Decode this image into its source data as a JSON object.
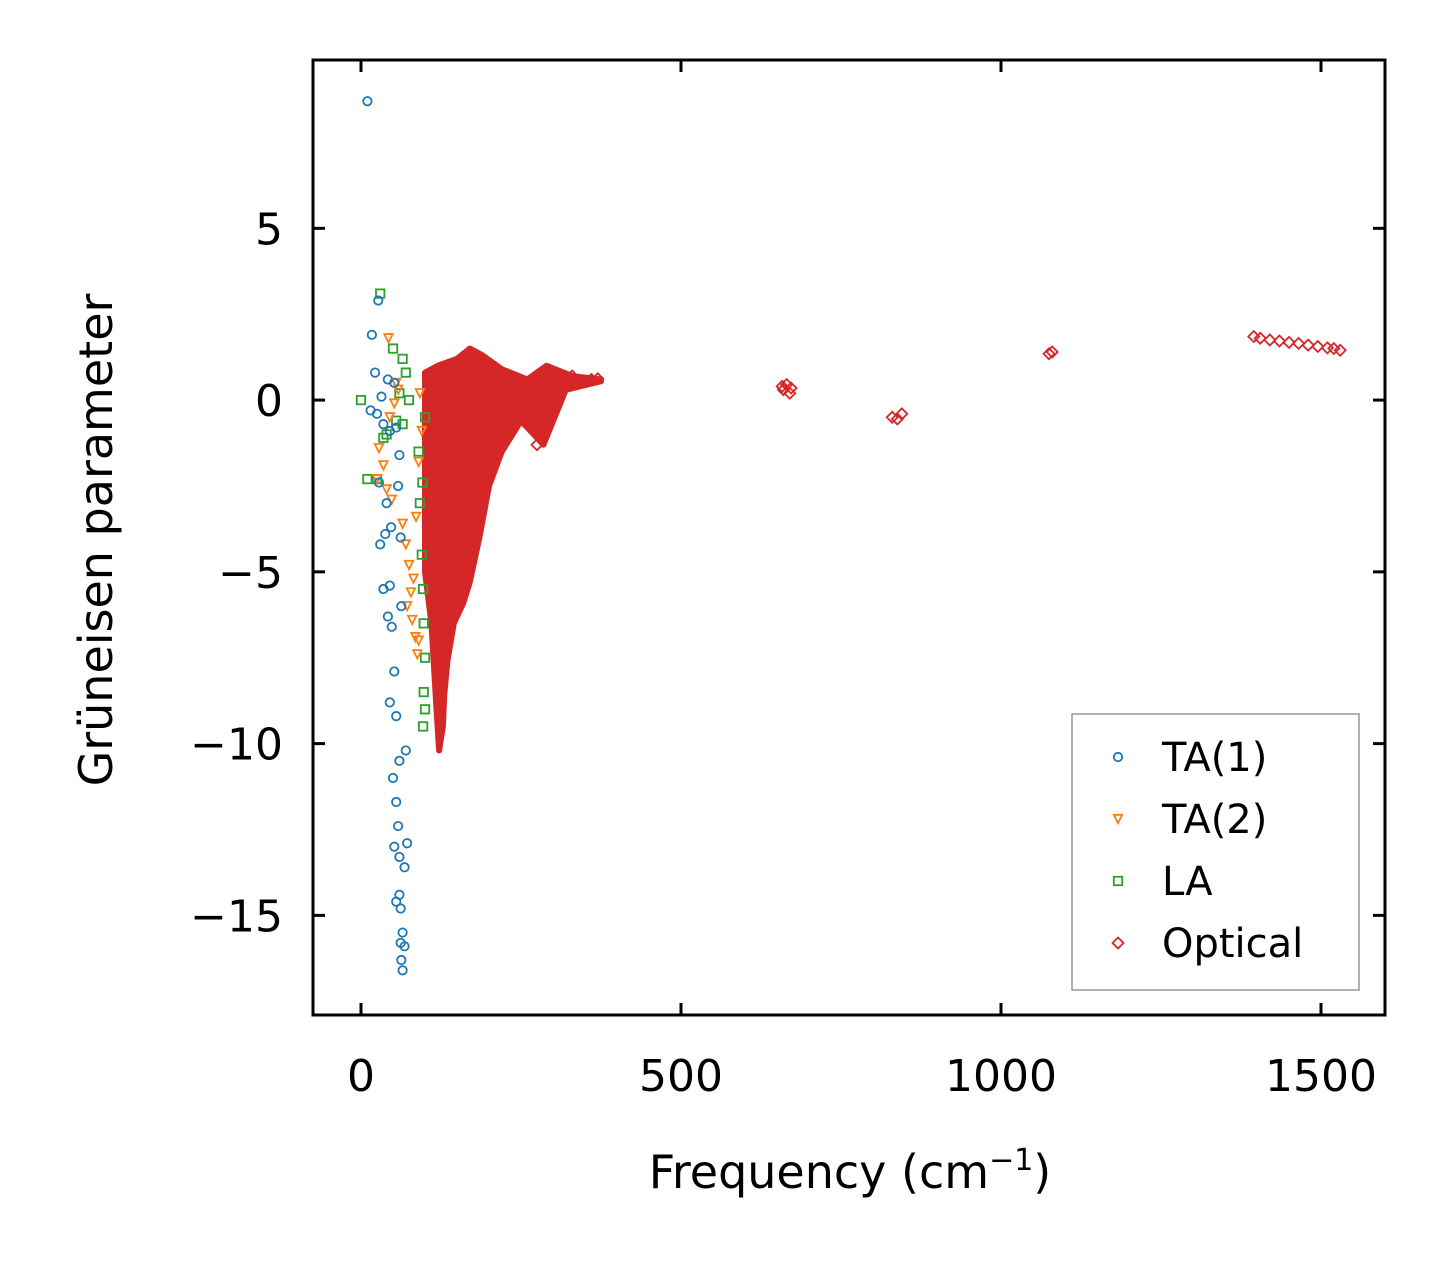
{
  "chart_data": {
    "type": "scatter",
    "title": "",
    "xlabel": "Frequency (cm",
    "xlabel_sup": "−1",
    "xlabel_close": ")",
    "ylabel": "Grüneisen parameter",
    "xlim": [
      -75,
      1600
    ],
    "ylim": [
      -17.9,
      9.9
    ],
    "xticks": [
      0,
      500,
      1000,
      1500
    ],
    "xtick_labels": [
      "0",
      "500",
      "1000",
      "1500"
    ],
    "yticks": [
      5,
      0,
      -5,
      -10,
      -15
    ],
    "ytick_labels": [
      "5",
      "0",
      "−5",
      "−10",
      "−15"
    ],
    "grid": false,
    "legend_position": "lower-right",
    "series": [
      {
        "name": "TA(1)",
        "color": "#1f77b4",
        "marker": "circle",
        "points": [
          [
            10,
            8.7
          ],
          [
            27,
            2.9
          ],
          [
            17,
            1.9
          ],
          [
            22,
            0.8
          ],
          [
            32,
            0.1
          ],
          [
            42,
            0.6
          ],
          [
            52,
            0.5
          ],
          [
            15,
            -0.3
          ],
          [
            25,
            -0.4
          ],
          [
            35,
            -0.7
          ],
          [
            45,
            -0.9
          ],
          [
            55,
            -0.8
          ],
          [
            28,
            -2.4
          ],
          [
            40,
            -3.0
          ],
          [
            38,
            -3.9
          ],
          [
            30,
            -4.2
          ],
          [
            47,
            -3.7
          ],
          [
            35,
            -5.5
          ],
          [
            45,
            -5.4
          ],
          [
            42,
            -6.3
          ],
          [
            48,
            -6.6
          ],
          [
            45,
            -8.8
          ],
          [
            52,
            -7.9
          ],
          [
            55,
            -9.2
          ],
          [
            50,
            -11.0
          ],
          [
            55,
            -11.7
          ],
          [
            58,
            -12.4
          ],
          [
            52,
            -13.0
          ],
          [
            60,
            -13.3
          ],
          [
            55,
            -14.6
          ],
          [
            60,
            -14.4
          ],
          [
            62,
            -14.8
          ],
          [
            65,
            -15.5
          ],
          [
            62,
            -15.8
          ],
          [
            68,
            -15.9
          ],
          [
            63,
            -16.3
          ],
          [
            65,
            -16.6
          ],
          [
            60,
            -1.6
          ],
          [
            58,
            -2.5
          ],
          [
            62,
            -4.0
          ],
          [
            63,
            -6.0
          ],
          [
            60,
            -10.5
          ],
          [
            70,
            -10.2
          ],
          [
            72,
            -12.9
          ],
          [
            68,
            -13.6
          ]
        ]
      },
      {
        "name": "TA(2)",
        "color": "#ff7f0e",
        "marker": "triangle-down",
        "points": [
          [
            43,
            1.8
          ],
          [
            55,
            0.5
          ],
          [
            58,
            0.3
          ],
          [
            52,
            -0.1
          ],
          [
            45,
            -0.5
          ],
          [
            28,
            -1.4
          ],
          [
            25,
            -2.3
          ],
          [
            35,
            -1.9
          ],
          [
            40,
            -2.6
          ],
          [
            48,
            -2.9
          ],
          [
            65,
            -3.6
          ],
          [
            70,
            -4.2
          ],
          [
            75,
            -4.8
          ],
          [
            78,
            -5.6
          ],
          [
            72,
            -6.0
          ],
          [
            80,
            -6.4
          ],
          [
            85,
            -6.9
          ],
          [
            88,
            -7.4
          ],
          [
            90,
            -7.0
          ],
          [
            82,
            -5.2
          ],
          [
            86,
            -3.4
          ],
          [
            90,
            -1.8
          ],
          [
            95,
            -0.9
          ],
          [
            92,
            0.2
          ]
        ]
      },
      {
        "name": "LA",
        "color": "#2ca02c",
        "marker": "square",
        "points": [
          [
            30,
            3.1
          ],
          [
            0,
            0.0
          ],
          [
            50,
            1.5
          ],
          [
            65,
            1.2
          ],
          [
            70,
            0.8
          ],
          [
            60,
            0.2
          ],
          [
            75,
            0.0
          ],
          [
            65,
            -0.7
          ],
          [
            55,
            -0.6
          ],
          [
            40,
            -1.0
          ],
          [
            35,
            -1.1
          ],
          [
            10,
            -2.3
          ],
          [
            25,
            -2.3
          ],
          [
            90,
            -1.5
          ],
          [
            92,
            -3.0
          ],
          [
            95,
            -4.5
          ],
          [
            97,
            -5.5
          ],
          [
            98,
            -6.5
          ],
          [
            100,
            -7.5
          ],
          [
            98,
            -8.5
          ],
          [
            100,
            -9.0
          ],
          [
            97,
            -9.5
          ],
          [
            100,
            -0.5
          ],
          [
            96,
            -2.4
          ]
        ]
      },
      {
        "name": "Optical",
        "color": "#d62728",
        "marker": "diamond",
        "points": [
          [
            660,
            0.3
          ],
          [
            665,
            0.45
          ],
          [
            670,
            0.2
          ],
          [
            658,
            0.4
          ],
          [
            672,
            0.35
          ],
          [
            830,
            -0.5
          ],
          [
            838,
            -0.55
          ],
          [
            845,
            -0.4
          ],
          [
            1075,
            1.35
          ],
          [
            1080,
            1.4
          ],
          [
            1395,
            1.85
          ],
          [
            1420,
            1.75
          ],
          [
            1450,
            1.68
          ],
          [
            1480,
            1.6
          ],
          [
            1510,
            1.52
          ],
          [
            1530,
            1.45
          ],
          [
            1405,
            1.8
          ],
          [
            1435,
            1.72
          ],
          [
            1465,
            1.65
          ],
          [
            1495,
            1.56
          ],
          [
            1520,
            1.5
          ],
          [
            283,
            -0.4
          ],
          [
            275,
            -1.3
          ],
          [
            300,
            0.8
          ],
          [
            330,
            0.7
          ],
          [
            360,
            0.6
          ],
          [
            370,
            0.62
          ]
        ]
      }
    ],
    "dense_region": {
      "series": "Optical",
      "description_free": true,
      "upper": [
        [
          100,
          0.8
        ],
        [
          120,
          1.0
        ],
        [
          150,
          1.2
        ],
        [
          170,
          1.5
        ],
        [
          190,
          1.3
        ],
        [
          220,
          0.9
        ],
        [
          260,
          0.6
        ],
        [
          290,
          1.0
        ],
        [
          330,
          0.7
        ],
        [
          375,
          0.6
        ]
      ],
      "lower": [
        [
          375,
          0.55
        ],
        [
          320,
          0.3
        ],
        [
          285,
          -1.3
        ],
        [
          250,
          -0.6
        ],
        [
          220,
          -1.5
        ],
        [
          200,
          -2.5
        ],
        [
          185,
          -4.0
        ],
        [
          170,
          -5.3
        ],
        [
          160,
          -5.9
        ],
        [
          145,
          -6.5
        ],
        [
          135,
          -7.6
        ],
        [
          130,
          -8.6
        ],
        [
          128,
          -9.5
        ],
        [
          122,
          -10.2
        ],
        [
          118,
          -9.0
        ],
        [
          110,
          -6.5
        ],
        [
          100,
          -5.0
        ]
      ]
    }
  }
}
